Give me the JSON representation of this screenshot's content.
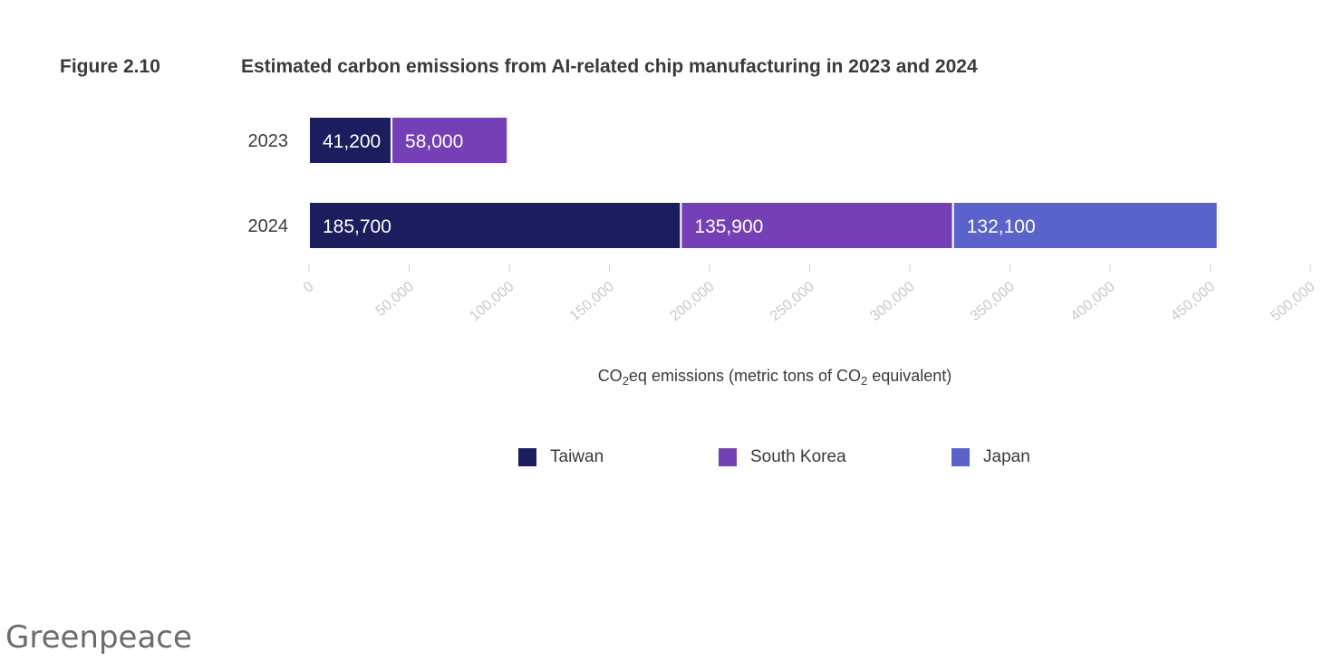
{
  "figure": {
    "label": "Figure 2.10",
    "title": "Estimated carbon emissions from AI-related chip manufacturing in 2023 and 2024"
  },
  "source": "Greenpeace",
  "chart_data": {
    "type": "bar",
    "orientation": "horizontal",
    "stacked": true,
    "title": "Estimated carbon emissions from AI-related chip manufacturing in 2023 and 2024",
    "categories": [
      "2023",
      "2024"
    ],
    "series": [
      {
        "name": "Taiwan",
        "values": [
          41200,
          185700
        ],
        "labels": [
          "41,200",
          "185,700"
        ],
        "color": "#1b1d5e"
      },
      {
        "name": "South Korea",
        "values": [
          58000,
          135900
        ],
        "labels": [
          "58,000",
          "135,900"
        ],
        "color": "#7540b6"
      },
      {
        "name": "Japan",
        "values": [
          null,
          132100
        ],
        "labels": [
          "",
          "132,100"
        ],
        "color": "#5a62cc"
      }
    ],
    "xlabel": {
      "prefix": "CO",
      "sub1": "2",
      "middle": "eq emissions (metric tons of CO",
      "sub2": "2",
      "suffix": " equivalent)"
    },
    "xlim": [
      0,
      500000
    ],
    "xticks": [
      0,
      50000,
      100000,
      150000,
      200000,
      250000,
      300000,
      350000,
      400000,
      450000,
      500000
    ],
    "xtick_labels": [
      "0",
      "50,000",
      "100,000",
      "150,000",
      "200,000",
      "250,000",
      "300,000",
      "350,000",
      "400,000",
      "450,000",
      "500,000"
    ],
    "grid": false,
    "legend_position": "bottom-center"
  }
}
